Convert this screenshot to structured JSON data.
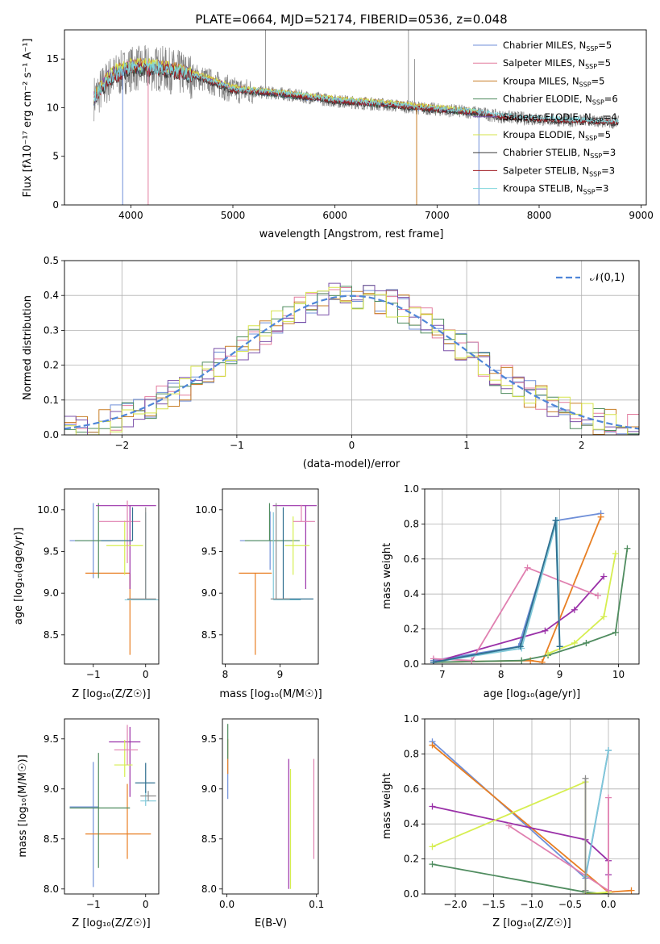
{
  "figure_title": "PLATE=0664, MJD=52174, FIBERID=0536, z=0.048",
  "colors": {
    "chabrier_miles": "#6f8fd8",
    "salpeter_miles": "#e37c9e",
    "kroupa_miles": "#c87d26",
    "chabrier_elodie": "#4f8c5f",
    "salpeter_elodie": "#7b50a8",
    "kroupa_elodie": "#d6e34a",
    "chabrier_stelib": "#3a3a3a",
    "salpeter_stelib": "#a01c22",
    "kroupa_stelib": "#7fd6dc",
    "data": "#808080",
    "panel5": [
      "#6f8fd8",
      "#e87f23",
      "#4f8c5f",
      "#9a30a8",
      "#d6ee50",
      "#e080b0",
      "#7fc8d8",
      "#2f6f8f",
      "#8a8a8a"
    ]
  },
  "chart_data": [
    {
      "id": "spectrum",
      "type": "line",
      "title": "PLATE=0664, MJD=52174, FIBERID=0536, z=0.048",
      "xlabel": "wavelength [Angstrom, rest frame]",
      "ylabel": "Flux [fλ10⁻¹⁷ erg cm⁻² s⁻¹ A⁻¹]",
      "xlim": [
        3350,
        9050
      ],
      "ylim": [
        0,
        18
      ],
      "xticks": [
        4000,
        5000,
        6000,
        7000,
        8000,
        9000
      ],
      "yticks": [
        0,
        5,
        10,
        15
      ],
      "legend_position": "top-right",
      "legend": [
        {
          "key": "chabrier_miles",
          "base": "Chabrier MILES, N",
          "sub": "SSP",
          "tail": "=5"
        },
        {
          "key": "salpeter_miles",
          "base": "Salpeter MILES, N",
          "sub": "SSP",
          "tail": "=5"
        },
        {
          "key": "kroupa_miles",
          "base": "Kroupa MILES, N",
          "sub": "SSP",
          "tail": "=5"
        },
        {
          "key": "chabrier_elodie",
          "base": "Chabrier ELODIE, N",
          "sub": "SSP",
          "tail": "=6"
        },
        {
          "key": "salpeter_elodie",
          "base": "Salpeter ELODIE, N",
          "sub": "SSP",
          "tail": "=4"
        },
        {
          "key": "kroupa_elodie",
          "base": "Kroupa ELODIE, N",
          "sub": "SSP",
          "tail": "=5"
        },
        {
          "key": "chabrier_stelib",
          "base": "Chabrier STELIB, N",
          "sub": "SSP",
          "tail": "=3"
        },
        {
          "key": "salpeter_stelib",
          "base": "Salpeter STELIB, N",
          "sub": "SSP",
          "tail": "=3"
        },
        {
          "key": "kroupa_stelib",
          "base": "Kroupa STELIB, N",
          "sub": "SSP",
          "tail": "=3"
        }
      ],
      "observed_continuum": [
        [
          3640,
          11
        ],
        [
          3800,
          13
        ],
        [
          4000,
          14
        ],
        [
          4300,
          14
        ],
        [
          4700,
          13
        ],
        [
          5000,
          11.8
        ],
        [
          5500,
          11.4
        ],
        [
          6000,
          10.7
        ],
        [
          6500,
          10.3
        ],
        [
          7000,
          9.8
        ],
        [
          7400,
          9.5
        ],
        [
          7600,
          9.1
        ],
        [
          8000,
          8.8
        ],
        [
          8500,
          8.6
        ],
        [
          8780,
          8.5
        ]
      ],
      "model_continuum": [
        [
          3640,
          11
        ],
        [
          3800,
          13.5
        ],
        [
          4000,
          14.3
        ],
        [
          4300,
          14.2
        ],
        [
          4700,
          13.2
        ],
        [
          5000,
          12
        ],
        [
          5500,
          11.4
        ],
        [
          6000,
          10.8
        ],
        [
          6500,
          10.4
        ],
        [
          7000,
          9.9
        ],
        [
          7400,
          9.5
        ]
      ],
      "emission_spikes": [
        [
          5320,
          18
        ],
        [
          6720,
          18
        ],
        [
          6780,
          15
        ]
      ],
      "model_dropouts": [
        3920,
        4170,
        6800,
        7410
      ]
    },
    {
      "id": "residuals",
      "type": "histogram",
      "xlabel": "(data-model)/error",
      "ylabel": "Normed distribution",
      "xlim": [
        -2.5,
        2.5
      ],
      "ylim": [
        0,
        0.5
      ],
      "xticks": [
        -2,
        -1,
        0,
        1,
        2
      ],
      "yticks": [
        0.0,
        0.1,
        0.2,
        0.3,
        0.4,
        0.5
      ],
      "grid": true,
      "legend": [
        {
          "name": "𝒩(0,1)",
          "style": "dashed",
          "color": "#4f86d8"
        }
      ],
      "legend_position": "top-right",
      "series_colors": [
        "#6f8fd8",
        "#e37c9e",
        "#c87d26",
        "#4f8c5f",
        "#7b50a8",
        "#d6e34a"
      ],
      "bin_width": 0.1
    },
    {
      "id": "age_vs_Z",
      "type": "errorbar",
      "xlabel": "Z [log₁₀(Z/Z☉)]",
      "ylabel": "age  [log₁₀(age/yr)]",
      "xlim": [
        -1.55,
        0.25
      ],
      "ylim": [
        8.15,
        10.25
      ],
      "xticks": [
        -1,
        0
      ],
      "yticks": [
        8.5,
        9.0,
        9.5,
        10.0
      ],
      "points": [
        {
          "c": 0,
          "x": -1.0,
          "y": 9.63,
          "xe": [
            0.45,
            0.35
          ],
          "ye": [
            0.45,
            0.45
          ]
        },
        {
          "c": 1,
          "x": -0.3,
          "y": 9.24,
          "xe": [
            0.85,
            0.0
          ],
          "ye": [
            0.98,
            0.0
          ]
        },
        {
          "c": 2,
          "x": -0.9,
          "y": 9.63,
          "xe": [
            0.45,
            0.65
          ],
          "ye": [
            0.45,
            0.45
          ]
        },
        {
          "c": 3,
          "x": -0.3,
          "y": 10.05,
          "xe": [
            0.65,
            0.5
          ],
          "ye": [
            1.0,
            0.0
          ]
        },
        {
          "c": 4,
          "x": -0.4,
          "y": 9.57,
          "xe": [
            0.35,
            0.35
          ],
          "ye": [
            0.35,
            0.3
          ]
        },
        {
          "c": 5,
          "x": -0.35,
          "y": 9.86,
          "xe": [
            0.55,
            0.25
          ],
          "ye": [
            0.5,
            0.25
          ]
        },
        {
          "c": 6,
          "x": 0.0,
          "y": 8.92,
          "xe": [
            0.4,
            0.25
          ],
          "ye": [
            0.0,
            1.05
          ]
        },
        {
          "c": 7,
          "x": -0.25,
          "y": 9.63,
          "xe": [
            0.6,
            0.0
          ],
          "ye": [
            0.0,
            0.4
          ]
        },
        {
          "c": 8,
          "x": 0.0,
          "y": 8.93,
          "xe": [
            0.35,
            0.2
          ],
          "ye": [
            0.0,
            1.1
          ]
        }
      ]
    },
    {
      "id": "age_vs_mass",
      "type": "errorbar",
      "xlabel": "mass [log₁₀(M/M☉)]",
      "ylabel": "",
      "xlim": [
        7.95,
        9.7
      ],
      "ylim": [
        8.15,
        10.25
      ],
      "xticks": [
        8,
        9
      ],
      "yticks": [
        8.5,
        9.0,
        9.5,
        10.0
      ],
      "points": [
        {
          "c": 0,
          "x": 8.82,
          "y": 9.63,
          "xe": [
            0.55,
            0.4
          ],
          "ye": [
            0.35,
            0.35
          ]
        },
        {
          "c": 1,
          "x": 8.55,
          "y": 9.24,
          "xe": [
            0.3,
            0.3
          ],
          "ye": [
            0.98,
            0.0
          ]
        },
        {
          "c": 2,
          "x": 8.81,
          "y": 9.63,
          "xe": [
            0.45,
            0.55
          ],
          "ye": [
            0.0,
            0.45
          ]
        },
        {
          "c": 3,
          "x": 9.47,
          "y": 10.05,
          "xe": [
            0.6,
            0.2
          ],
          "ye": [
            1.0,
            0.0
          ]
        },
        {
          "c": 4,
          "x": 9.24,
          "y": 9.57,
          "xe": [
            0.15,
            0.3
          ],
          "ye": [
            0.35,
            0.35
          ]
        },
        {
          "c": 5,
          "x": 9.39,
          "y": 9.86,
          "xe": [
            0.15,
            0.25
          ],
          "ye": [
            0.0,
            0.2
          ]
        },
        {
          "c": 6,
          "x": 8.88,
          "y": 8.92,
          "xe": [
            0.0,
            0.5
          ],
          "ye": [
            0.0,
            1.05
          ]
        },
        {
          "c": 7,
          "x": 9.06,
          "y": 8.93,
          "xe": [
            0.0,
            0.55
          ],
          "ye": [
            0.0,
            1.1
          ]
        },
        {
          "c": 8,
          "x": 8.93,
          "y": 8.93,
          "xe": [
            0.1,
            0.25
          ],
          "ye": [
            0.0,
            1.15
          ]
        }
      ]
    },
    {
      "id": "mass_weight_vs_age",
      "type": "line",
      "xlabel": "age  [log₁₀(age/yr)]",
      "ylabel": "mass weight",
      "xlim": [
        6.7,
        10.35
      ],
      "ylim": [
        0,
        1.0
      ],
      "xticks": [
        7,
        8,
        9,
        10
      ],
      "yticks": [
        0.0,
        0.2,
        0.4,
        0.6,
        0.8,
        1.0
      ],
      "grid": true,
      "series": [
        {
          "c": 0,
          "x": [
            6.85,
            8.3,
            8.95,
            9.7
          ],
          "y": [
            0.02,
            0.1,
            0.82,
            0.86
          ]
        },
        {
          "c": 1,
          "x": [
            6.85,
            8.5,
            8.7,
            9.7
          ],
          "y": [
            0.01,
            0.02,
            0.01,
            0.84
          ]
        },
        {
          "c": 2,
          "x": [
            6.85,
            8.35,
            8.8,
            9.45,
            9.95,
            10.15
          ],
          "y": [
            0.01,
            0.02,
            0.05,
            0.12,
            0.18,
            0.66
          ]
        },
        {
          "c": 3,
          "x": [
            6.85,
            8.75,
            9.25,
            9.75
          ],
          "y": [
            0.01,
            0.19,
            0.31,
            0.5
          ]
        },
        {
          "c": 4,
          "x": [
            8.8,
            9.25,
            9.75,
            9.95
          ],
          "y": [
            0.06,
            0.12,
            0.27,
            0.63
          ]
        },
        {
          "c": 5,
          "x": [
            6.85,
            7.5,
            8.45,
            9.65
          ],
          "y": [
            0.03,
            0.02,
            0.55,
            0.39
          ]
        },
        {
          "c": 6,
          "x": [
            6.85,
            8.35,
            8.95,
            9.0
          ],
          "y": [
            0.01,
            0.09,
            0.82,
            0.1
          ]
        },
        {
          "c": 7,
          "x": [
            6.85,
            8.33,
            8.93,
            9.0
          ],
          "y": [
            0.01,
            0.1,
            0.82,
            0.1
          ]
        }
      ]
    },
    {
      "id": "mass_vs_Z",
      "type": "errorbar",
      "xlabel": "Z [log₁₀(Z/Z☉)]",
      "ylabel": "mass [log₁₀(M/M☉)]",
      "xlim": [
        -1.55,
        0.25
      ],
      "ylim": [
        7.95,
        9.7
      ],
      "xticks": [
        -1,
        0
      ],
      "yticks": [
        8.0,
        8.5,
        9.0,
        9.5
      ],
      "points": [
        {
          "c": 0,
          "x": -1.0,
          "y": 8.82,
          "xe": [
            0.45,
            0.1
          ],
          "ye": [
            0.8,
            0.45
          ]
        },
        {
          "c": 1,
          "x": -0.35,
          "y": 8.55,
          "xe": [
            0.8,
            0.45
          ],
          "ye": [
            0.25,
            0.5
          ]
        },
        {
          "c": 2,
          "x": -0.9,
          "y": 8.81,
          "xe": [
            0.55,
            0.6
          ],
          "ye": [
            0.6,
            0.55
          ]
        },
        {
          "c": 3,
          "x": -0.3,
          "y": 9.47,
          "xe": [
            0.4,
            0.2
          ],
          "ye": [
            0.55,
            0.15
          ]
        },
        {
          "c": 4,
          "x": -0.4,
          "y": 9.24,
          "xe": [
            0.2,
            0.15
          ],
          "ye": [
            0.12,
            0.25
          ]
        },
        {
          "c": 5,
          "x": -0.35,
          "y": 9.39,
          "xe": [
            0.25,
            0.2
          ],
          "ye": [
            0.15,
            0.25
          ]
        },
        {
          "c": 6,
          "x": 0.0,
          "y": 8.88,
          "xe": [
            0.1,
            0.2
          ],
          "ye": [
            0.05,
            0.1
          ]
        },
        {
          "c": 7,
          "x": 0.0,
          "y": 9.06,
          "xe": [
            0.2,
            0.18
          ],
          "ye": [
            0.1,
            0.2
          ]
        },
        {
          "c": 8,
          "x": 0.05,
          "y": 8.93,
          "xe": [
            0.15,
            0.15
          ],
          "ye": [
            0.05,
            0.05
          ]
        }
      ]
    },
    {
      "id": "mass_vs_EBV",
      "type": "errorbar",
      "xlabel": "E(B-V)",
      "ylabel": "",
      "xlim": [
        -0.005,
        0.102
      ],
      "ylim": [
        7.95,
        9.7
      ],
      "xticks": [
        0.0,
        0.1
      ],
      "yticks": [
        8.0,
        8.5,
        9.0,
        9.5
      ],
      "points": [
        {
          "c": 0,
          "x": 0.001,
          "y": 9.0,
          "xe": [
            0.0,
            0.0
          ],
          "ye": [
            0.1,
            0.3
          ]
        },
        {
          "c": 1,
          "x": 0.001,
          "y": 9.2,
          "xe": [
            0.0,
            0.0
          ],
          "ye": [
            0.05,
            0.3
          ]
        },
        {
          "c": 2,
          "x": 0.001,
          "y": 9.4,
          "xe": [
            0.0,
            0.0
          ],
          "ye": [
            0.1,
            0.25
          ]
        },
        {
          "c": 3,
          "x": 0.069,
          "y": 8.6,
          "xe": [
            0.0,
            0.0
          ],
          "ye": [
            0.6,
            0.7
          ]
        },
        {
          "c": 4,
          "x": 0.071,
          "y": 8.6,
          "xe": [
            0.0,
            0.0
          ],
          "ye": [
            0.6,
            0.6
          ]
        },
        {
          "c": 5,
          "x": 0.097,
          "y": 8.8,
          "xe": [
            0.0,
            0.0
          ],
          "ye": [
            0.5,
            0.5
          ]
        }
      ]
    },
    {
      "id": "mass_weight_vs_Z",
      "type": "line",
      "xlabel": "Z [log₁₀(Z/Z☉)]",
      "ylabel": "mass weight",
      "xlim": [
        -2.4,
        0.4
      ],
      "ylim": [
        0,
        1.0
      ],
      "xticks": [
        -2.0,
        -1.5,
        -1.0,
        -0.5,
        0.0
      ],
      "yticks": [
        0.0,
        0.2,
        0.4,
        0.6,
        0.8,
        1.0
      ],
      "grid": true,
      "series": [
        {
          "c": 0,
          "x": [
            -2.3,
            -0.3,
            0.0
          ],
          "y": [
            0.87,
            0.09,
            0.82
          ]
        },
        {
          "c": 1,
          "x": [
            -2.3,
            -0.0,
            0.3
          ],
          "y": [
            0.85,
            0.01,
            0.02
          ]
        },
        {
          "c": 2,
          "x": [
            -2.3,
            -0.3,
            0.0
          ],
          "y": [
            0.17,
            0.01,
            0.0
          ]
        },
        {
          "c": 3,
          "x": [
            -2.3,
            -0.3,
            -0.0,
            -0.0
          ],
          "y": [
            0.5,
            0.31,
            0.19,
            0.11
          ]
        },
        {
          "c": 4,
          "x": [
            -2.3,
            -0.3,
            -0.3,
            0.0
          ],
          "y": [
            0.27,
            0.64,
            0.0,
            0.01
          ]
        },
        {
          "c": 5,
          "x": [
            -1.3,
            -0.0,
            -0.0
          ],
          "y": [
            0.39,
            0.02,
            0.55
          ]
        },
        {
          "c": 6,
          "x": [
            -0.3,
            0.0
          ],
          "y": [
            0.1,
            0.82
          ]
        },
        {
          "c": 8,
          "x": [
            -0.3,
            -0.3
          ],
          "y": [
            0.66,
            0.02
          ]
        }
      ]
    }
  ]
}
